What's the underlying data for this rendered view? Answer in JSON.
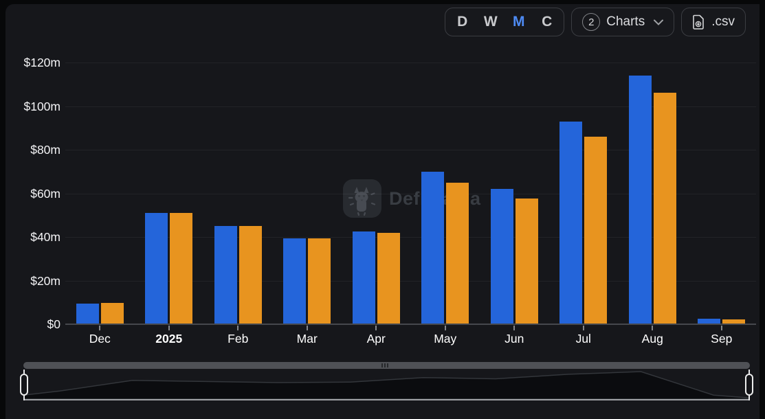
{
  "toolbar": {
    "interval_options": [
      {
        "label": "D",
        "active": false
      },
      {
        "label": "W",
        "active": false
      },
      {
        "label": "M",
        "active": true
      },
      {
        "label": "C",
        "active": false
      }
    ],
    "charts_button": {
      "count": "2",
      "label": "Charts"
    },
    "csv_button": {
      "label": ".csv"
    }
  },
  "watermark": {
    "text": "DefiLlama"
  },
  "chart_data": {
    "type": "bar",
    "title": "",
    "unit": "USD millions",
    "categories": [
      "Dec",
      "2025",
      "Feb",
      "Mar",
      "Apr",
      "May",
      "Jun",
      "Jul",
      "Aug",
      "Sep"
    ],
    "emphasized_category": "2025",
    "series": [
      {
        "name": "blue-series",
        "color": "#2465da",
        "values": [
          9.5,
          51,
          45,
          39.5,
          42.5,
          70,
          62,
          93,
          114,
          2.5
        ]
      },
      {
        "name": "orange-series",
        "color": "#e8941f",
        "values": [
          9.7,
          51,
          45,
          39.5,
          42,
          65,
          57.5,
          86,
          106,
          2.2
        ]
      }
    ],
    "ylabel_ticks": [
      "$120m",
      "$100m",
      "$80m",
      "$60m",
      "$40m",
      "$20m",
      "$0"
    ],
    "ylim": [
      0,
      120
    ],
    "grid": "horizontal",
    "legend": "none"
  },
  "colors": {
    "background": "#070809",
    "panel": "#16171b",
    "accent_blue": "#2465da",
    "accent_orange": "#e8941f",
    "active_interval": "#4e8bf4"
  }
}
